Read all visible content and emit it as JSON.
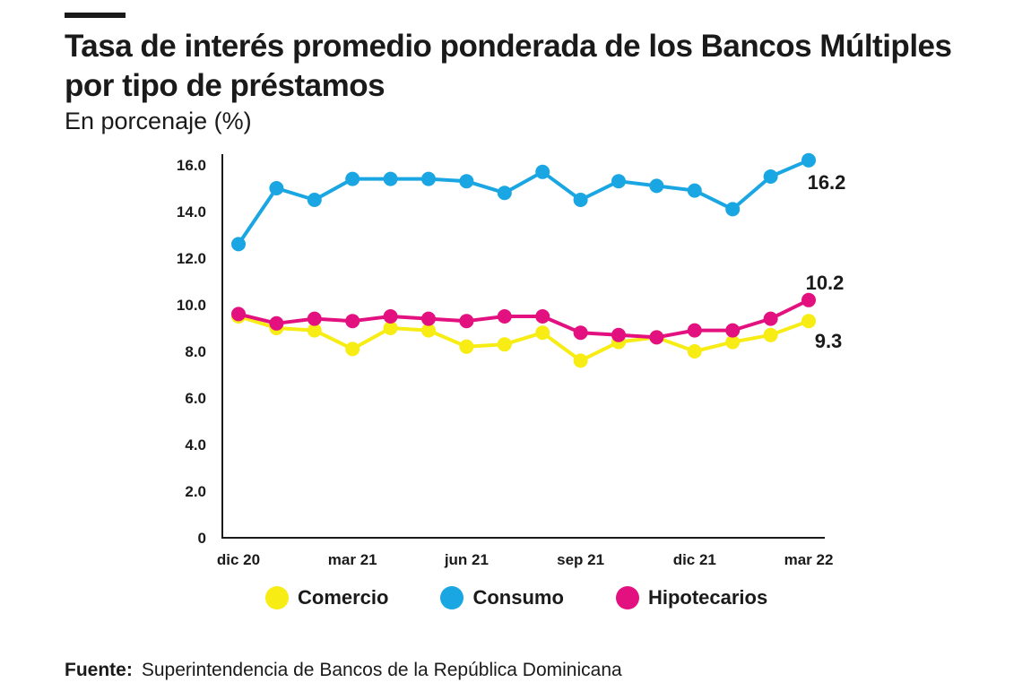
{
  "title": "Tasa de interés promedio ponderada de los Bancos Múltiples por tipo de préstamos",
  "subtitle": "En porcenaje (%)",
  "source": {
    "label": "Fuente:",
    "text": "Superintendencia de Bancos de la República Dominicana"
  },
  "chart_data": {
    "type": "line",
    "title": "Tasa de interés promedio ponderada de los Bancos Múltiples por tipo de préstamos",
    "ylabel": "En porcenaje (%)",
    "ylim": [
      0,
      16
    ],
    "yticks": [
      {
        "value": 0,
        "label": "0"
      },
      {
        "value": 2,
        "label": "2.0"
      },
      {
        "value": 4,
        "label": "4.0"
      },
      {
        "value": 6,
        "label": "6.0"
      },
      {
        "value": 8,
        "label": "8.0"
      },
      {
        "value": 10,
        "label": "10.0"
      },
      {
        "value": 12,
        "label": "12.0"
      },
      {
        "value": 14,
        "label": "14.0"
      },
      {
        "value": 16,
        "label": "16.0"
      }
    ],
    "x": [
      "dic 20",
      "ene 21",
      "feb 21",
      "mar 21",
      "abr 21",
      "may 21",
      "jun 21",
      "jul 21",
      "ago 21",
      "sep 21",
      "oct 21",
      "nov 21",
      "dic 21",
      "ene 22",
      "feb 22",
      "mar 22"
    ],
    "xtick_labels": [
      {
        "index": 0,
        "label": "dic 20"
      },
      {
        "index": 3,
        "label": "mar 21"
      },
      {
        "index": 6,
        "label": "jun 21"
      },
      {
        "index": 9,
        "label": "sep 21"
      },
      {
        "index": 12,
        "label": "dic 21"
      },
      {
        "index": 15,
        "label": "mar 22"
      }
    ],
    "series": [
      {
        "name": "Comercio",
        "color": "#f7ec13",
        "values": [
          9.5,
          9.0,
          8.9,
          8.1,
          9.0,
          8.9,
          8.2,
          8.3,
          8.8,
          7.6,
          8.4,
          8.6,
          8.0,
          8.4,
          8.7,
          9.3
        ],
        "end_label": "9.3"
      },
      {
        "name": "Consumo",
        "color": "#1aa6e2",
        "values": [
          12.6,
          15.0,
          14.5,
          15.4,
          15.4,
          15.4,
          15.3,
          14.8,
          15.7,
          14.5,
          15.3,
          15.1,
          14.9,
          14.1,
          15.5,
          16.2
        ],
        "end_label": "16.2"
      },
      {
        "name": "Hipotecarios",
        "color": "#e3117f",
        "values": [
          9.6,
          9.2,
          9.4,
          9.3,
          9.5,
          9.4,
          9.3,
          9.5,
          9.5,
          8.8,
          8.7,
          8.6,
          8.9,
          8.9,
          9.4,
          10.2
        ],
        "end_label": "10.2"
      }
    ]
  }
}
